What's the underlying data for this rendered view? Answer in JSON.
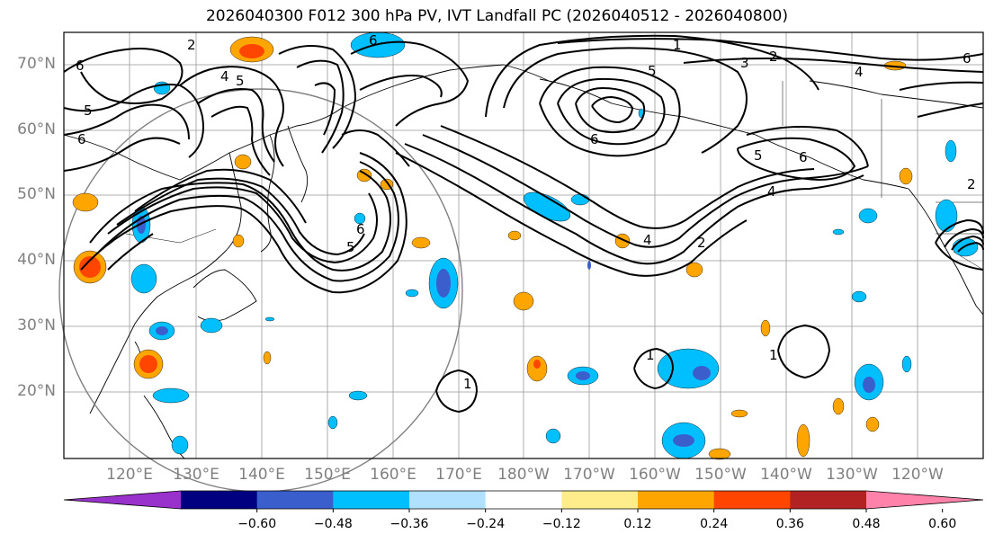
{
  "title": "2026040300 F012 300 hPa PV, IVT Landfall PC (2026040512 - 2026040800)",
  "lat_labels": [
    "70°N",
    "60°N",
    "50°N",
    "40°N",
    "30°N",
    "20°N"
  ],
  "lon_labels": [
    "120°E",
    "130°E",
    "140°E",
    "150°E",
    "160°E",
    "170°E",
    "180°W",
    "170°W",
    "160°W",
    "150°W",
    "140°W",
    "130°W",
    "120°W"
  ],
  "colorbar": {
    "ticks": [
      "−0.60",
      "−0.48",
      "−0.36",
      "−0.24",
      "−0.12",
      "0.12",
      "0.24",
      "0.36",
      "0.48",
      "0.60"
    ],
    "colors": [
      "#9932cc",
      "#000080",
      "#3a5fcd",
      "#00bfff",
      "#b0e2ff",
      "#ffffff",
      "#ffec8b",
      "#ffa500",
      "#ff4500",
      "#b22222",
      "#ff82ab"
    ]
  },
  "contour_labels": [
    "1",
    "2",
    "3",
    "4",
    "5",
    "6"
  ]
}
